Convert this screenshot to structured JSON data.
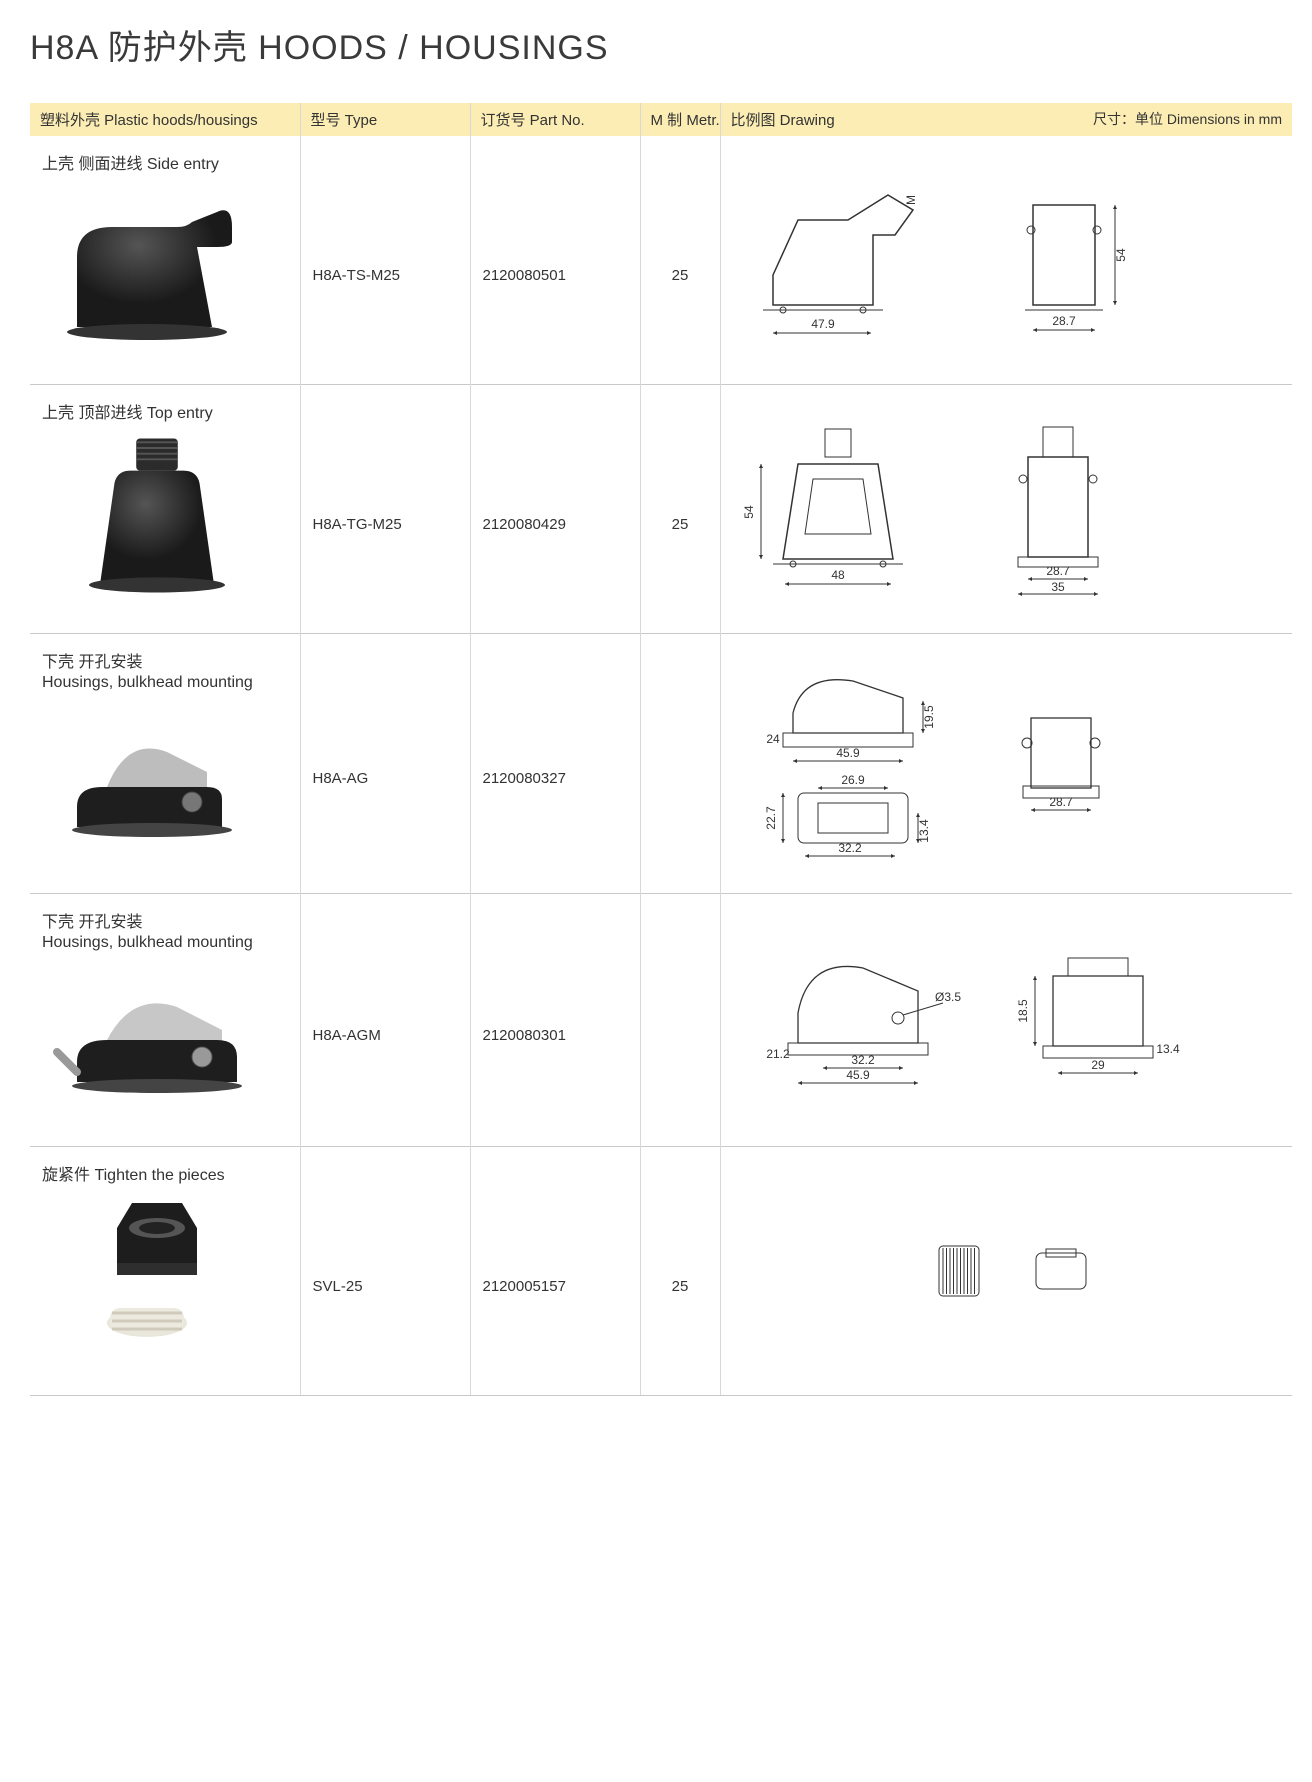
{
  "page": {
    "title": "H8A 防护外壳  HOODS / HOUSINGS",
    "header_bg": "#fbedb4",
    "border_color": "#c9c9c9",
    "col_sep_color": "#d8d8d8",
    "text_color": "#333333"
  },
  "headers": {
    "image": "塑料外壳 Plastic hoods/housings",
    "type": "型号 Type",
    "partno": "订货号 Part No.",
    "metr": "M 制 Metr.",
    "drawing": "比例图 Drawing",
    "dims": "尺寸：单位 Dimensions in mm"
  },
  "rows": [
    {
      "label_cn": "上壳  侧面进线 Side entry",
      "label_en": "",
      "type": "H8A-TS-M25",
      "partno": "2120080501",
      "metr": "25",
      "photo_color": "#1a1a1a",
      "dims": {
        "w1": "47.9",
        "w2": "28.7",
        "h1": "54",
        "m": "M"
      },
      "drawing_kind": "side_entry"
    },
    {
      "label_cn": "上壳  顶部进线 Top entry",
      "label_en": "",
      "type": "H8A-TG-M25",
      "partno": "2120080429",
      "metr": "25",
      "photo_color": "#1a1a1a",
      "dims": {
        "w1": "48",
        "w2": "28.7",
        "w3": "35",
        "h1": "54"
      },
      "drawing_kind": "top_entry"
    },
    {
      "label_cn": "下壳  开孔安装",
      "label_en": "Housings, bulkhead mounting",
      "type": "H8A-AG",
      "partno": "2120080327",
      "metr": "",
      "photo_color": "#1a1a1a",
      "dims": {
        "a": "24",
        "b": "45.9",
        "c": "19.5",
        "d": "28.7",
        "e": "26.9",
        "f": "32.2",
        "g": "22.7",
        "h": "13.4"
      },
      "drawing_kind": "bulkhead1"
    },
    {
      "label_cn": "下壳  开孔安装",
      "label_en": "Housings, bulkhead mounting",
      "type": "H8A-AGM",
      "partno": "2120080301",
      "metr": "",
      "photo_color": "#1a1a1a",
      "dims": {
        "a": "21.2",
        "b": "45.9",
        "c": "32.2",
        "d": "Ø3.5",
        "e": "18.5",
        "f": "13.4",
        "g": "29"
      },
      "drawing_kind": "bulkhead2"
    },
    {
      "label_cn": "旋紧件 Tighten the pieces",
      "label_en": "",
      "type": "SVL-25",
      "partno": "2120005157",
      "metr": "25",
      "photo_color": "#1a1a1a",
      "dims": {},
      "drawing_kind": "gland"
    }
  ]
}
